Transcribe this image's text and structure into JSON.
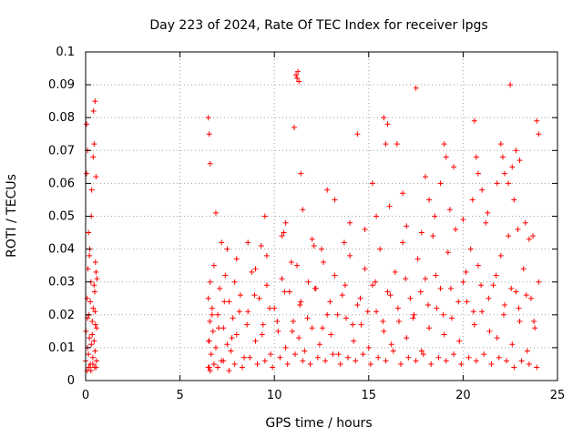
{
  "chart_data": {
    "type": "scatter",
    "title": "Day 223 of 2024, Rate Of TEC Index for receiver lpgs",
    "xlabel": "GPS time / hours",
    "ylabel": "ROTI / TECUs",
    "xlim": [
      0,
      25
    ],
    "ylim": [
      0,
      0.1
    ],
    "x_ticks": [
      "0",
      "5",
      "10",
      "15",
      "20",
      "25"
    ],
    "y_ticks": [
      "0",
      "0.01",
      "0.02",
      "0.03",
      "0.04",
      "0.05",
      "0.06",
      "0.07",
      "0.08",
      "0.09",
      "0.1"
    ],
    "x_tick_values": [
      0,
      5,
      10,
      15,
      20,
      25
    ],
    "y_tick_values": [
      0,
      0.01,
      0.02,
      0.03,
      0.04,
      0.05,
      0.06,
      0.07,
      0.08,
      0.09,
      0.1
    ],
    "grid": true,
    "marker": "+",
    "color": "#ff0000",
    "series": [
      {
        "name": "ROTI",
        "x": [
          0.0,
          0.02,
          0.05,
          0.08,
          0.1,
          0.12,
          0.15,
          0.18,
          0.2,
          0.22,
          0.25,
          0.28,
          0.3,
          0.32,
          0.35,
          0.38,
          0.4,
          0.42,
          0.45,
          0.48,
          0.5,
          0.52,
          0.55,
          0.58,
          0.6,
          0.05,
          0.1,
          0.15,
          0.2,
          0.3,
          0.4,
          0.45,
          0.5,
          0.55,
          0.08,
          0.18,
          0.28,
          0.38,
          0.48,
          0.58,
          0.1,
          0.25,
          0.35,
          0.45,
          0.5,
          0.52,
          0.55,
          6.5,
          6.52,
          6.55,
          6.58,
          6.6,
          6.65,
          6.7,
          6.75,
          6.8,
          6.9,
          7.0,
          7.1,
          7.2,
          7.3,
          7.4,
          7.5,
          7.6,
          7.7,
          7.8,
          7.9,
          8.0,
          8.2,
          8.4,
          8.6,
          8.8,
          9.0,
          9.2,
          9.4,
          9.6,
          9.8,
          10.0,
          10.2,
          10.4,
          10.6,
          10.8,
          11.0,
          11.2,
          11.3,
          11.4,
          11.6,
          11.8,
          12.0,
          12.2,
          12.4,
          12.6,
          12.8,
          13.0,
          13.2,
          13.4,
          13.6,
          13.8,
          14.0,
          14.2,
          14.4,
          14.6,
          14.8,
          15.0,
          15.2,
          15.4,
          15.6,
          15.8,
          16.0,
          16.2,
          16.4,
          16.6,
          16.8,
          17.0,
          17.2,
          17.4,
          17.6,
          17.8,
          18.0,
          18.2,
          18.4,
          18.6,
          18.8,
          19.0,
          19.2,
          19.4,
          19.6,
          19.8,
          20.0,
          20.2,
          20.4,
          20.6,
          20.8,
          21.0,
          21.2,
          21.4,
          21.6,
          21.8,
          22.0,
          22.2,
          22.4,
          22.6,
          22.8,
          23.0,
          23.2,
          23.4,
          23.6,
          23.8,
          24.0,
          6.5,
          6.6,
          6.8,
          7.0,
          7.3,
          7.6,
          7.9,
          8.3,
          8.7,
          9.1,
          9.5,
          9.9,
          10.3,
          10.7,
          11.1,
          11.5,
          11.9,
          12.3,
          12.7,
          13.1,
          13.5,
          13.9,
          14.3,
          14.7,
          15.1,
          15.5,
          15.9,
          16.3,
          16.7,
          17.1,
          17.5,
          17.9,
          18.3,
          18.7,
          19.1,
          19.5,
          19.9,
          20.3,
          20.7,
          21.1,
          21.5,
          21.9,
          22.3,
          22.7,
          23.1,
          23.5,
          23.9,
          6.55,
          6.7,
          7.05,
          7.35,
          7.75,
          8.15,
          8.55,
          8.95,
          9.35,
          9.75,
          10.15,
          10.55,
          10.95,
          11.35,
          11.75,
          12.15,
          12.55,
          12.95,
          13.35,
          13.75,
          14.15,
          14.55,
          14.95,
          15.35,
          15.75,
          16.15,
          16.55,
          16.95,
          17.35,
          17.75,
          18.15,
          18.55,
          18.95,
          19.35,
          19.75,
          20.15,
          20.55,
          20.95,
          21.35,
          21.75,
          22.15,
          22.55,
          22.95,
          23.35,
          23.75,
          6.5,
          6.55,
          6.6,
          6.9,
          9.5,
          11.15,
          11.2,
          11.25,
          11.3,
          11.05,
          11.4,
          14.4,
          15.2,
          15.8,
          15.9,
          16.0,
          16.5,
          17.5,
          18.2,
          18.8,
          19.0,
          19.1,
          19.5,
          20.6,
          20.7,
          20.8,
          21.8,
          22.0,
          22.1,
          22.2,
          22.4,
          22.5,
          22.7,
          22.8,
          22.6,
          23.0,
          23.3,
          23.9,
          24.0,
          12.8,
          13.2,
          11.5,
          10.5,
          10.6,
          7.2,
          7.5,
          8.6,
          9.3,
          9.6,
          10.4,
          10.9,
          12.0,
          12.5,
          13.7,
          14.8,
          15.4,
          16.1,
          17.0,
          17.8,
          18.5,
          19.3,
          20.0,
          20.5,
          21.3,
          22.9,
          23.5,
          23.7,
          8.0,
          9.0,
          12.1,
          14.0,
          16.8,
          18.0,
          21.0
        ],
        "y": [
          0.006,
          0.015,
          0.063,
          0.025,
          0.01,
          0.034,
          0.008,
          0.02,
          0.013,
          0.04,
          0.005,
          0.03,
          0.011,
          0.058,
          0.018,
          0.007,
          0.022,
          0.082,
          0.012,
          0.027,
          0.009,
          0.036,
          0.004,
          0.016,
          0.031,
          0.078,
          0.07,
          0.045,
          0.038,
          0.05,
          0.068,
          0.072,
          0.085,
          0.062,
          0.003,
          0.004,
          0.003,
          0.005,
          0.004,
          0.006,
          0.019,
          0.024,
          0.014,
          0.029,
          0.021,
          0.017,
          0.033,
          0.025,
          0.012,
          0.004,
          0.018,
          0.03,
          0.008,
          0.022,
          0.015,
          0.035,
          0.01,
          0.02,
          0.028,
          0.006,
          0.016,
          0.032,
          0.011,
          0.024,
          0.009,
          0.019,
          0.03,
          0.014,
          0.026,
          0.007,
          0.021,
          0.033,
          0.012,
          0.025,
          0.017,
          0.029,
          0.008,
          0.022,
          0.015,
          0.031,
          0.01,
          0.027,
          0.018,
          0.035,
          0.013,
          0.024,
          0.009,
          0.03,
          0.016,
          0.028,
          0.011,
          0.036,
          0.02,
          0.014,
          0.032,
          0.008,
          0.026,
          0.019,
          0.038,
          0.012,
          0.023,
          0.017,
          0.034,
          0.01,
          0.029,
          0.021,
          0.04,
          0.015,
          0.027,
          0.011,
          0.033,
          0.018,
          0.042,
          0.013,
          0.025,
          0.02,
          0.037,
          0.009,
          0.031,
          0.016,
          0.044,
          0.022,
          0.028,
          0.014,
          0.039,
          0.019,
          0.046,
          0.012,
          0.03,
          0.024,
          0.04,
          0.017,
          0.035,
          0.021,
          0.048,
          0.015,
          0.029,
          0.013,
          0.038,
          0.023,
          0.044,
          0.011,
          0.027,
          0.018,
          0.034,
          0.009,
          0.025,
          0.016,
          0.03,
          0.004,
          0.003,
          0.005,
          0.004,
          0.006,
          0.003,
          0.005,
          0.004,
          0.007,
          0.005,
          0.006,
          0.004,
          0.007,
          0.005,
          0.008,
          0.006,
          0.005,
          0.007,
          0.006,
          0.008,
          0.005,
          0.007,
          0.006,
          0.008,
          0.005,
          0.007,
          0.006,
          0.009,
          0.005,
          0.007,
          0.006,
          0.008,
          0.005,
          0.007,
          0.006,
          0.008,
          0.005,
          0.007,
          0.006,
          0.008,
          0.005,
          0.007,
          0.006,
          0.004,
          0.006,
          0.005,
          0.004,
          0.012,
          0.02,
          0.016,
          0.024,
          0.013,
          0.021,
          0.017,
          0.026,
          0.014,
          0.022,
          0.018,
          0.027,
          0.015,
          0.023,
          0.019,
          0.028,
          0.016,
          0.024,
          0.02,
          0.029,
          0.017,
          0.025,
          0.021,
          0.03,
          0.018,
          0.026,
          0.022,
          0.031,
          0.019,
          0.027,
          0.023,
          0.032,
          0.02,
          0.028,
          0.024,
          0.033,
          0.021,
          0.029,
          0.025,
          0.032,
          0.02,
          0.028,
          0.022,
          0.026,
          0.018,
          0.08,
          0.075,
          0.066,
          0.051,
          0.05,
          0.093,
          0.092,
          0.094,
          0.091,
          0.077,
          0.063,
          0.075,
          0.06,
          0.08,
          0.072,
          0.078,
          0.072,
          0.089,
          0.055,
          0.06,
          0.072,
          0.068,
          0.065,
          0.079,
          0.068,
          0.063,
          0.06,
          0.072,
          0.068,
          0.063,
          0.06,
          0.09,
          0.055,
          0.07,
          0.065,
          0.067,
          0.048,
          0.079,
          0.075,
          0.058,
          0.055,
          0.052,
          0.045,
          0.048,
          0.042,
          0.04,
          0.042,
          0.041,
          0.038,
          0.044,
          0.036,
          0.043,
          0.04,
          0.042,
          0.046,
          0.05,
          0.053,
          0.047,
          0.045,
          0.05,
          0.052,
          0.049,
          0.055,
          0.051,
          0.046,
          0.043,
          0.044,
          0.037,
          0.034,
          0.041,
          0.048,
          0.057,
          0.062,
          0.058
        ]
      }
    ]
  }
}
